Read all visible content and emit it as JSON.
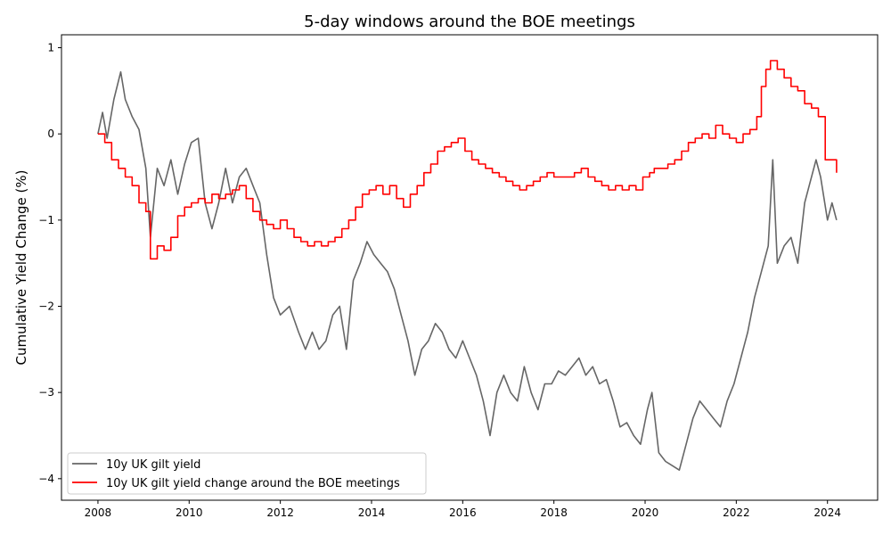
{
  "chart_data": {
    "type": "line",
    "title": "5-day windows around the BOE meetings",
    "xlabel": "",
    "ylabel": "Cumulative Yield Change (%)",
    "xlim": [
      2007.2,
      2025.1
    ],
    "ylim": [
      -4.25,
      1.15
    ],
    "x_ticks": [
      2008,
      2010,
      2012,
      2014,
      2016,
      2018,
      2020,
      2022,
      2024
    ],
    "x_tick_labels": [
      "2008",
      "2010",
      "2012",
      "2014",
      "2016",
      "2018",
      "2020",
      "2022",
      "2024"
    ],
    "y_ticks": [
      1,
      0,
      -1,
      -2,
      -3,
      -4
    ],
    "y_tick_labels": [
      "1",
      "0",
      "−1",
      "−2",
      "−3",
      "−4"
    ],
    "grid": false,
    "legend_position": "lower-left",
    "series": [
      {
        "name": "10y UK gilt yield",
        "color": "#666666",
        "style": "line",
        "x": [
          2008.0,
          2008.1,
          2008.2,
          2008.35,
          2008.5,
          2008.6,
          2008.75,
          2008.9,
          2009.05,
          2009.15,
          2009.3,
          2009.45,
          2009.6,
          2009.75,
          2009.9,
          2010.05,
          2010.2,
          2010.35,
          2010.5,
          2010.65,
          2010.8,
          2010.95,
          2011.1,
          2011.25,
          2011.4,
          2011.55,
          2011.7,
          2011.85,
          2012.0,
          2012.2,
          2012.4,
          2012.55,
          2012.7,
          2012.85,
          2013.0,
          2013.15,
          2013.3,
          2013.45,
          2013.6,
          2013.75,
          2013.9,
          2014.05,
          2014.2,
          2014.35,
          2014.5,
          2014.65,
          2014.8,
          2014.95,
          2015.1,
          2015.25,
          2015.4,
          2015.55,
          2015.7,
          2015.85,
          2016.0,
          2016.15,
          2016.3,
          2016.45,
          2016.6,
          2016.75,
          2016.9,
          2017.05,
          2017.2,
          2017.35,
          2017.5,
          2017.65,
          2017.8,
          2017.95,
          2018.1,
          2018.25,
          2018.4,
          2018.55,
          2018.7,
          2018.85,
          2019.0,
          2019.15,
          2019.3,
          2019.45,
          2019.6,
          2019.75,
          2019.9,
          2020.05,
          2020.15,
          2020.3,
          2020.45,
          2020.6,
          2020.75,
          2020.9,
          2021.05,
          2021.2,
          2021.35,
          2021.5,
          2021.65,
          2021.8,
          2021.95,
          2022.1,
          2022.25,
          2022.4,
          2022.55,
          2022.7,
          2022.8,
          2022.9,
          2023.05,
          2023.2,
          2023.35,
          2023.5,
          2023.6,
          2023.75,
          2023.85,
          2024.0,
          2024.1,
          2024.2
        ],
        "y": [
          0.0,
          0.25,
          -0.05,
          0.4,
          0.72,
          0.4,
          0.2,
          0.05,
          -0.4,
          -1.2,
          -0.4,
          -0.6,
          -0.3,
          -0.7,
          -0.35,
          -0.1,
          -0.05,
          -0.8,
          -1.1,
          -0.8,
          -0.4,
          -0.8,
          -0.5,
          -0.4,
          -0.6,
          -0.8,
          -1.4,
          -1.9,
          -2.1,
          -2.0,
          -2.3,
          -2.5,
          -2.3,
          -2.5,
          -2.4,
          -2.1,
          -2.0,
          -2.5,
          -1.7,
          -1.5,
          -1.25,
          -1.4,
          -1.5,
          -1.6,
          -1.8,
          -2.1,
          -2.4,
          -2.8,
          -2.5,
          -2.4,
          -2.2,
          -2.3,
          -2.5,
          -2.6,
          -2.4,
          -2.6,
          -2.8,
          -3.1,
          -3.5,
          -3.0,
          -2.8,
          -3.0,
          -3.1,
          -2.7,
          -3.0,
          -3.2,
          -2.9,
          -2.9,
          -2.75,
          -2.8,
          -2.7,
          -2.6,
          -2.8,
          -2.7,
          -2.9,
          -2.85,
          -3.1,
          -3.4,
          -3.35,
          -3.5,
          -3.6,
          -3.2,
          -3.0,
          -3.7,
          -3.8,
          -3.85,
          -3.9,
          -3.6,
          -3.3,
          -3.1,
          -3.2,
          -3.3,
          -3.4,
          -3.1,
          -2.9,
          -2.6,
          -2.3,
          -1.9,
          -1.6,
          -1.3,
          -0.3,
          -1.5,
          -1.3,
          -1.2,
          -1.5,
          -0.8,
          -0.6,
          -0.3,
          -0.5,
          -1.0,
          -0.8,
          -1.0
        ],
        "data_name": "gilt-yield-line"
      },
      {
        "name": "10y UK gilt yield change around the BOE meetings",
        "color": "#ff0000",
        "style": "step",
        "x": [
          2008.0,
          2008.15,
          2008.3,
          2008.45,
          2008.6,
          2008.75,
          2008.9,
          2009.05,
          2009.15,
          2009.3,
          2009.45,
          2009.6,
          2009.75,
          2009.9,
          2010.05,
          2010.2,
          2010.35,
          2010.5,
          2010.65,
          2010.8,
          2010.95,
          2011.1,
          2011.25,
          2011.4,
          2011.55,
          2011.7,
          2011.85,
          2012.0,
          2012.15,
          2012.3,
          2012.45,
          2012.6,
          2012.75,
          2012.9,
          2013.05,
          2013.2,
          2013.35,
          2013.5,
          2013.65,
          2013.8,
          2013.95,
          2014.1,
          2014.25,
          2014.4,
          2014.55,
          2014.7,
          2014.85,
          2015.0,
          2015.15,
          2015.3,
          2015.45,
          2015.6,
          2015.75,
          2015.9,
          2016.05,
          2016.2,
          2016.35,
          2016.5,
          2016.65,
          2016.8,
          2016.95,
          2017.1,
          2017.25,
          2017.4,
          2017.55,
          2017.7,
          2017.85,
          2018.0,
          2018.15,
          2018.3,
          2018.45,
          2018.6,
          2018.75,
          2018.9,
          2019.05,
          2019.2,
          2019.35,
          2019.5,
          2019.65,
          2019.8,
          2019.95,
          2020.1,
          2020.2,
          2020.35,
          2020.5,
          2020.65,
          2020.8,
          2020.95,
          2021.1,
          2021.25,
          2021.4,
          2021.55,
          2021.7,
          2021.85,
          2022.0,
          2022.15,
          2022.3,
          2022.45,
          2022.55,
          2022.65,
          2022.75,
          2022.9,
          2023.05,
          2023.2,
          2023.35,
          2023.5,
          2023.65,
          2023.8,
          2023.95,
          2024.1,
          2024.2
        ],
        "y": [
          0.0,
          -0.1,
          -0.3,
          -0.4,
          -0.5,
          -0.6,
          -0.8,
          -0.9,
          -1.45,
          -1.3,
          -1.35,
          -1.2,
          -0.95,
          -0.85,
          -0.8,
          -0.75,
          -0.8,
          -0.7,
          -0.75,
          -0.7,
          -0.65,
          -0.6,
          -0.75,
          -0.9,
          -1.0,
          -1.05,
          -1.1,
          -1.0,
          -1.1,
          -1.2,
          -1.25,
          -1.3,
          -1.25,
          -1.3,
          -1.25,
          -1.2,
          -1.1,
          -1.0,
          -0.85,
          -0.7,
          -0.65,
          -0.6,
          -0.7,
          -0.6,
          -0.75,
          -0.85,
          -0.7,
          -0.6,
          -0.45,
          -0.35,
          -0.2,
          -0.15,
          -0.1,
          -0.05,
          -0.2,
          -0.3,
          -0.35,
          -0.4,
          -0.45,
          -0.5,
          -0.55,
          -0.6,
          -0.65,
          -0.6,
          -0.55,
          -0.5,
          -0.45,
          -0.5,
          -0.5,
          -0.5,
          -0.45,
          -0.4,
          -0.5,
          -0.55,
          -0.6,
          -0.65,
          -0.6,
          -0.65,
          -0.6,
          -0.65,
          -0.5,
          -0.45,
          -0.4,
          -0.4,
          -0.35,
          -0.3,
          -0.2,
          -0.1,
          -0.05,
          0.0,
          -0.05,
          0.1,
          0.0,
          -0.05,
          -0.1,
          0.0,
          0.05,
          0.2,
          0.55,
          0.75,
          0.85,
          0.75,
          0.65,
          0.55,
          0.5,
          0.35,
          0.3,
          0.2,
          -0.3,
          -0.3,
          -0.45
        ],
        "data_name": "boe-window-line"
      }
    ]
  }
}
